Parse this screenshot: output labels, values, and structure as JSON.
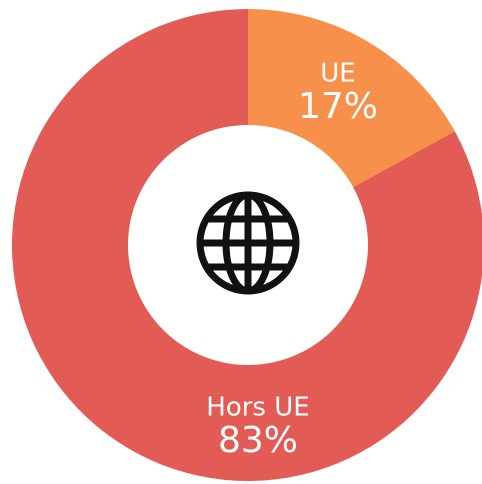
{
  "chart_data": {
    "type": "donut",
    "categories": [
      "UE",
      "Hors UE"
    ],
    "values": [
      17,
      83
    ],
    "value_labels": [
      "17%",
      "83%"
    ],
    "colors": [
      "#f7904b",
      "#e25b55"
    ]
  }
}
